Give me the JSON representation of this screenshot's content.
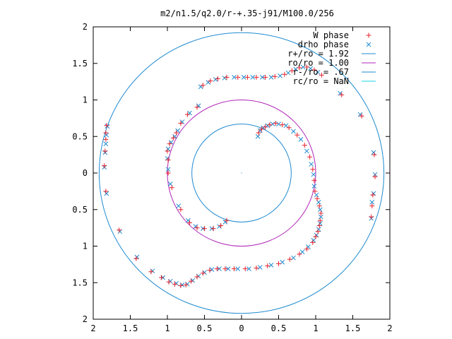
{
  "chart_data": {
    "type": "scatter",
    "title": "m2/n1.5/q2.0/r-+.35-j91/M100.0/256",
    "xlabel": "",
    "ylabel": "",
    "xlim": [
      -2,
      2
    ],
    "ylim": [
      -2,
      2
    ],
    "x_ticks": [
      -2,
      -1.5,
      -1,
      -0.5,
      0,
      0.5,
      1,
      1.5,
      2
    ],
    "y_ticks": [
      -2,
      -1.5,
      -1,
      -0.5,
      0,
      0.5,
      1,
      1.5,
      2
    ],
    "x_tick_labels": [
      "2",
      "1.5",
      "1",
      "0.5",
      "0",
      "0.5",
      "1",
      "1.5",
      "2"
    ],
    "y_tick_labels": [
      "2",
      "1.5",
      "1",
      "0.5",
      "0",
      "0.5",
      "1",
      "1.5",
      "2"
    ],
    "grid": false,
    "legend_position": "top-right",
    "circles": [
      {
        "name": "r+/ro = 1.92",
        "radius": 1.92,
        "color": "#1f8bd0"
      },
      {
        "name": "ro/ro = 1.00",
        "radius": 1.0,
        "color": "#b025b8"
      },
      {
        "name": "r-/ro = .67",
        "radius": 0.67,
        "color": "#1f8bd0"
      },
      {
        "name": "rc/ro = NaN",
        "radius": null,
        "color": "#19d6e6"
      }
    ],
    "series": [
      {
        "name": "W phase",
        "marker": "+",
        "color": "#e8202a",
        "points": [
          [
            -1.82,
            0.65
          ],
          [
            -1.83,
            0.55
          ],
          [
            -1.83,
            0.46
          ],
          [
            -1.84,
            0.3
          ],
          [
            -1.85,
            0.1
          ],
          [
            -1.83,
            -0.25
          ],
          [
            -1.65,
            -0.78
          ],
          [
            -1.42,
            -1.17
          ],
          [
            -1.22,
            -1.35
          ],
          [
            -1.08,
            -1.43
          ],
          [
            -0.98,
            -1.49
          ],
          [
            -0.9,
            -1.52
          ],
          [
            -0.82,
            -1.54
          ],
          [
            -0.75,
            -1.53
          ],
          [
            -0.68,
            -1.48
          ],
          [
            -0.6,
            -1.42
          ],
          [
            -0.52,
            -1.37
          ],
          [
            -0.43,
            -1.33
          ],
          [
            -0.33,
            -1.31
          ],
          [
            -0.22,
            -1.31
          ],
          [
            -0.1,
            -1.31
          ],
          [
            0.05,
            -1.31
          ],
          [
            0.2,
            -1.3
          ],
          [
            0.35,
            -1.27
          ],
          [
            0.5,
            -1.24
          ],
          [
            0.65,
            -1.18
          ],
          [
            0.78,
            -1.11
          ],
          [
            0.88,
            -1.04
          ],
          [
            0.96,
            -0.95
          ],
          [
            1.0,
            -0.87
          ],
          [
            1.03,
            -0.8
          ],
          [
            1.05,
            -0.72
          ],
          [
            1.06,
            -0.65
          ],
          [
            1.07,
            -0.55
          ],
          [
            1.05,
            -0.45
          ],
          [
            1.02,
            -0.35
          ],
          [
            0.99,
            -0.25
          ],
          [
            0.98,
            -0.1
          ],
          [
            0.96,
            0.05
          ],
          [
            0.92,
            0.22
          ],
          [
            0.85,
            0.38
          ],
          [
            0.75,
            0.52
          ],
          [
            0.64,
            0.62
          ],
          [
            0.55,
            0.66
          ],
          [
            0.46,
            0.68
          ],
          [
            0.38,
            0.66
          ],
          [
            0.32,
            0.63
          ],
          [
            0.27,
            0.6
          ],
          [
            0.23,
            0.55
          ],
          [
            -0.6,
            0.9
          ],
          [
            -0.73,
            0.8
          ],
          [
            -0.82,
            0.68
          ],
          [
            -0.88,
            0.55
          ],
          [
            -0.92,
            0.48
          ],
          [
            -0.97,
            0.4
          ],
          [
            -1.0,
            0.3
          ],
          [
            -0.99,
            0.18
          ],
          [
            -0.99,
            0.0
          ],
          [
            -0.94,
            -0.2
          ],
          [
            -0.82,
            -0.5
          ],
          [
            -0.7,
            -0.68
          ],
          [
            -0.6,
            -0.75
          ],
          [
            -0.5,
            -0.76
          ],
          [
            -0.38,
            -0.76
          ],
          [
            -0.28,
            -0.72
          ],
          [
            -0.2,
            -0.65
          ],
          [
            -0.52,
            1.2
          ],
          [
            -0.42,
            1.26
          ],
          [
            -0.32,
            1.29
          ],
          [
            -0.2,
            1.31
          ],
          [
            -0.05,
            1.31
          ],
          [
            0.08,
            1.31
          ],
          [
            0.2,
            1.31
          ],
          [
            0.32,
            1.31
          ],
          [
            0.45,
            1.32
          ],
          [
            0.58,
            1.35
          ],
          [
            0.68,
            1.4
          ],
          [
            0.78,
            1.44
          ],
          [
            0.88,
            1.45
          ],
          [
            0.98,
            1.41
          ],
          [
            1.08,
            1.34
          ],
          [
            1.35,
            1.07
          ],
          [
            1.62,
            0.78
          ],
          [
            1.79,
            0.25
          ],
          [
            1.8,
            -0.05
          ],
          [
            1.77,
            -0.3
          ],
          [
            1.76,
            -0.45
          ],
          [
            1.75,
            -0.6
          ]
        ]
      },
      {
        "name": "drho phase",
        "marker": "x",
        "color": "#1f8bd0",
        "points": [
          [
            -1.81,
            0.64
          ],
          [
            -1.82,
            0.52
          ],
          [
            -1.83,
            0.4
          ],
          [
            -1.84,
            0.28
          ],
          [
            -1.85,
            0.08
          ],
          [
            -1.82,
            -0.28
          ],
          [
            -1.64,
            -0.8
          ],
          [
            -1.41,
            -1.15
          ],
          [
            -1.2,
            -1.34
          ],
          [
            -1.06,
            -1.43
          ],
          [
            -0.96,
            -1.48
          ],
          [
            -0.88,
            -1.51
          ],
          [
            -0.8,
            -1.53
          ],
          [
            -0.73,
            -1.52
          ],
          [
            -0.66,
            -1.47
          ],
          [
            -0.58,
            -1.41
          ],
          [
            -0.5,
            -1.36
          ],
          [
            -0.4,
            -1.32
          ],
          [
            -0.3,
            -1.31
          ],
          [
            -0.18,
            -1.31
          ],
          [
            -0.05,
            -1.31
          ],
          [
            0.1,
            -1.31
          ],
          [
            0.25,
            -1.29
          ],
          [
            0.4,
            -1.26
          ],
          [
            0.55,
            -1.22
          ],
          [
            0.7,
            -1.16
          ],
          [
            0.82,
            -1.08
          ],
          [
            0.9,
            -1.01
          ],
          [
            0.97,
            -0.92
          ],
          [
            1.01,
            -0.85
          ],
          [
            1.04,
            -0.77
          ],
          [
            1.06,
            -0.69
          ],
          [
            1.07,
            -0.6
          ],
          [
            1.06,
            -0.5
          ],
          [
            1.04,
            -0.4
          ],
          [
            1.01,
            -0.3
          ],
          [
            0.98,
            -0.18
          ],
          [
            0.97,
            -0.02
          ],
          [
            0.94,
            0.12
          ],
          [
            0.88,
            0.3
          ],
          [
            0.8,
            0.46
          ],
          [
            0.7,
            0.57
          ],
          [
            0.6,
            0.65
          ],
          [
            0.5,
            0.67
          ],
          [
            0.42,
            0.67
          ],
          [
            0.35,
            0.65
          ],
          [
            0.29,
            0.62
          ],
          [
            0.25,
            0.58
          ],
          [
            0.22,
            0.5
          ],
          [
            -0.58,
            0.92
          ],
          [
            -0.7,
            0.82
          ],
          [
            -0.8,
            0.7
          ],
          [
            -0.86,
            0.58
          ],
          [
            -0.9,
            0.5
          ],
          [
            -0.95,
            0.42
          ],
          [
            -0.99,
            0.33
          ],
          [
            -1.0,
            0.2
          ],
          [
            -0.99,
            0.05
          ],
          [
            -0.96,
            -0.15
          ],
          [
            -0.85,
            -0.45
          ],
          [
            -0.72,
            -0.65
          ],
          [
            -0.62,
            -0.73
          ],
          [
            -0.52,
            -0.76
          ],
          [
            -0.4,
            -0.76
          ],
          [
            -0.3,
            -0.73
          ],
          [
            -0.22,
            -0.67
          ],
          [
            -0.55,
            1.18
          ],
          [
            -0.45,
            1.24
          ],
          [
            -0.35,
            1.28
          ],
          [
            -0.23,
            1.3
          ],
          [
            -0.1,
            1.31
          ],
          [
            0.03,
            1.31
          ],
          [
            0.15,
            1.31
          ],
          [
            0.28,
            1.31
          ],
          [
            0.4,
            1.31
          ],
          [
            0.52,
            1.33
          ],
          [
            0.63,
            1.37
          ],
          [
            0.73,
            1.42
          ],
          [
            0.83,
            1.45
          ],
          [
            0.93,
            1.43
          ],
          [
            1.03,
            1.38
          ],
          [
            1.33,
            1.09
          ],
          [
            1.6,
            0.8
          ],
          [
            1.78,
            0.28
          ],
          [
            1.8,
            -0.02
          ],
          [
            1.78,
            -0.28
          ],
          [
            1.76,
            -0.4
          ],
          [
            1.75,
            -0.62
          ]
        ]
      }
    ]
  }
}
